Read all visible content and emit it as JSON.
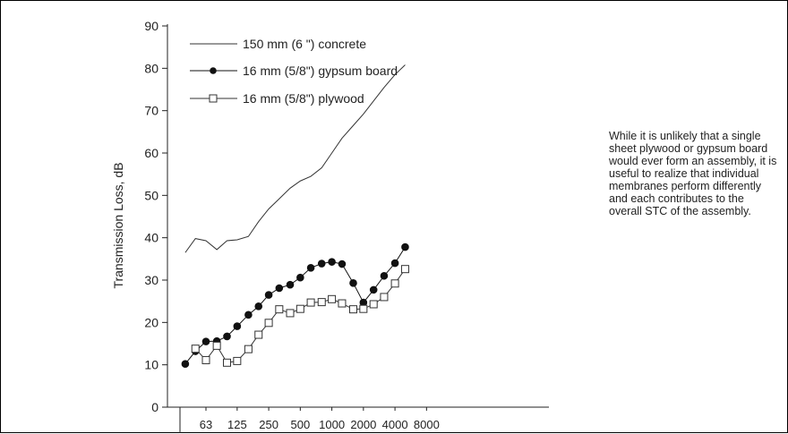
{
  "chart_data": {
    "type": "line",
    "ylabel": "Transmission Loss, dB",
    "xlabel": "",
    "ylim": [
      0,
      90
    ],
    "yticks": [
      0,
      10,
      20,
      30,
      40,
      50,
      60,
      70,
      80,
      90
    ],
    "x_scale": "log",
    "xtick_labels": [
      "63",
      "125",
      "250",
      "500",
      "1000",
      "2000",
      "4000",
      "8000"
    ],
    "x": [
      40,
      50,
      63,
      80,
      100,
      125,
      160,
      200,
      250,
      315,
      400,
      500,
      630,
      800,
      1000,
      1250,
      1600,
      2000,
      2500,
      3150,
      4000,
      5000,
      6300
    ],
    "series": [
      {
        "name": "150 mm (6 \") concrete",
        "marker": "none",
        "color": "#333333",
        "values": [
          36.5,
          39.8,
          39.3,
          37.2,
          39.3,
          39.5,
          40.3,
          43.8,
          46.8,
          49.2,
          51.7,
          53.4,
          54.5,
          56.5,
          60,
          63.5,
          66.5,
          69.2,
          72.3,
          75.5,
          78.5,
          80.8,
          null
        ]
      },
      {
        "name": "16 mm (5/8\") gypsum board",
        "marker": "filled-circle",
        "color": "#111111",
        "values": [
          10.2,
          13.2,
          15.5,
          15.6,
          16.7,
          19.1,
          21.8,
          23.8,
          26.5,
          28.1,
          28.9,
          30.6,
          32.9,
          33.9,
          34.3,
          33.8,
          29.3,
          24.7,
          27.7,
          31,
          34,
          37.8,
          null
        ]
      },
      {
        "name": "16 mm (5/8\") plywood",
        "marker": "open-square",
        "color": "#333333",
        "values": [
          null,
          13.8,
          11.1,
          14.5,
          10.5,
          10.9,
          13.7,
          17.1,
          19.9,
          23.1,
          22.2,
          23.2,
          24.7,
          24.8,
          25.5,
          24.5,
          23.1,
          23.2,
          24.3,
          26,
          29.2,
          32.6,
          null
        ]
      }
    ]
  },
  "note": "While it is unlikely that a single sheet plywood or gypsum board would ever form an assembly, it is useful to realize that individual membranes perform differently and each contributes to the overall STC of the assembly."
}
